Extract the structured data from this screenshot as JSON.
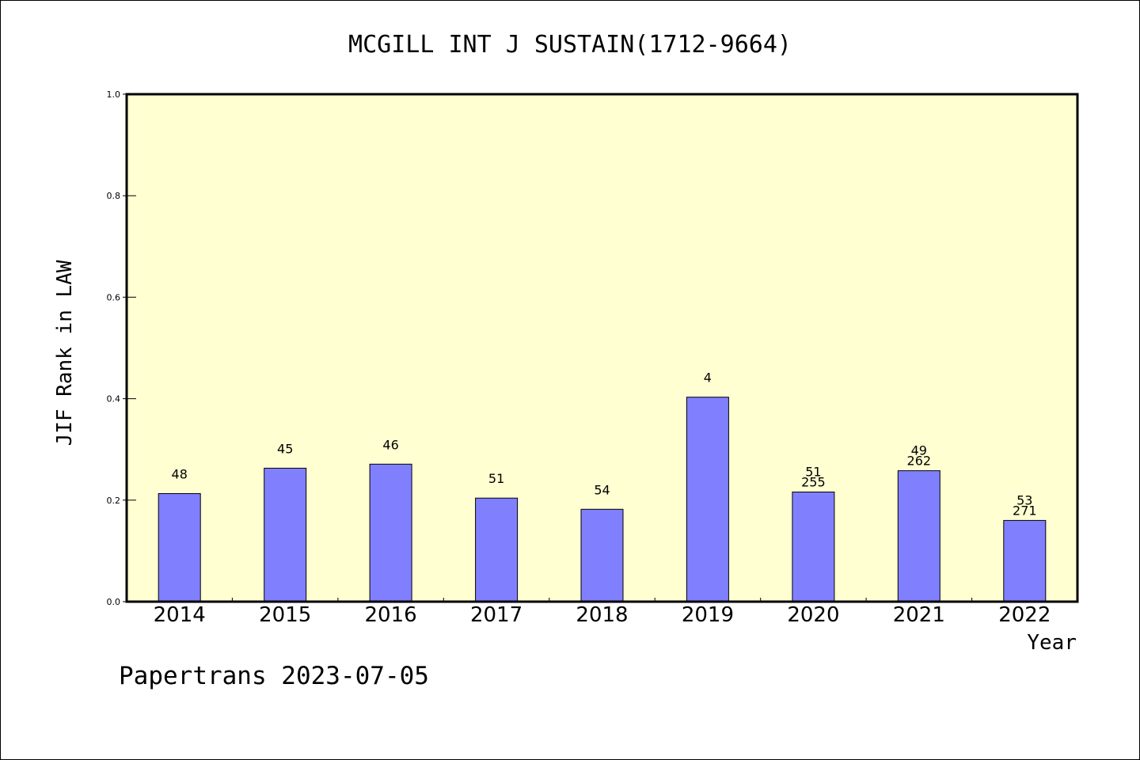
{
  "chart_data": {
    "type": "bar",
    "title": "MCGILL INT J SUSTAIN(1712-9664)",
    "xlabel": "Year",
    "ylabel": "JIF Rank in LAW",
    "ylim": [
      0,
      1.0
    ],
    "yticks": [
      "0.0",
      "0.2",
      "0.4",
      "0.6",
      "0.8",
      "1.0"
    ],
    "categories": [
      "2014",
      "2015",
      "2016",
      "2017",
      "2018",
      "2019",
      "2020",
      "2021",
      "2022"
    ],
    "values": [
      0.213,
      0.263,
      0.271,
      0.204,
      0.182,
      0.403,
      0.216,
      0.258,
      0.16
    ],
    "bar_labels": [
      [
        "48"
      ],
      [
        "45"
      ],
      [
        "46"
      ],
      [
        "51"
      ],
      [
        "54"
      ],
      [
        "4"
      ],
      [
        "51",
        "255"
      ],
      [
        "49",
        "262"
      ],
      [
        "53",
        "271"
      ]
    ],
    "colors": {
      "plot_background": "#ffffd2",
      "bar_fill": "#8080ff",
      "bar_stroke": "#000000"
    },
    "grid": false
  },
  "footer": {
    "credit": "Papertrans 2023-07-05"
  }
}
